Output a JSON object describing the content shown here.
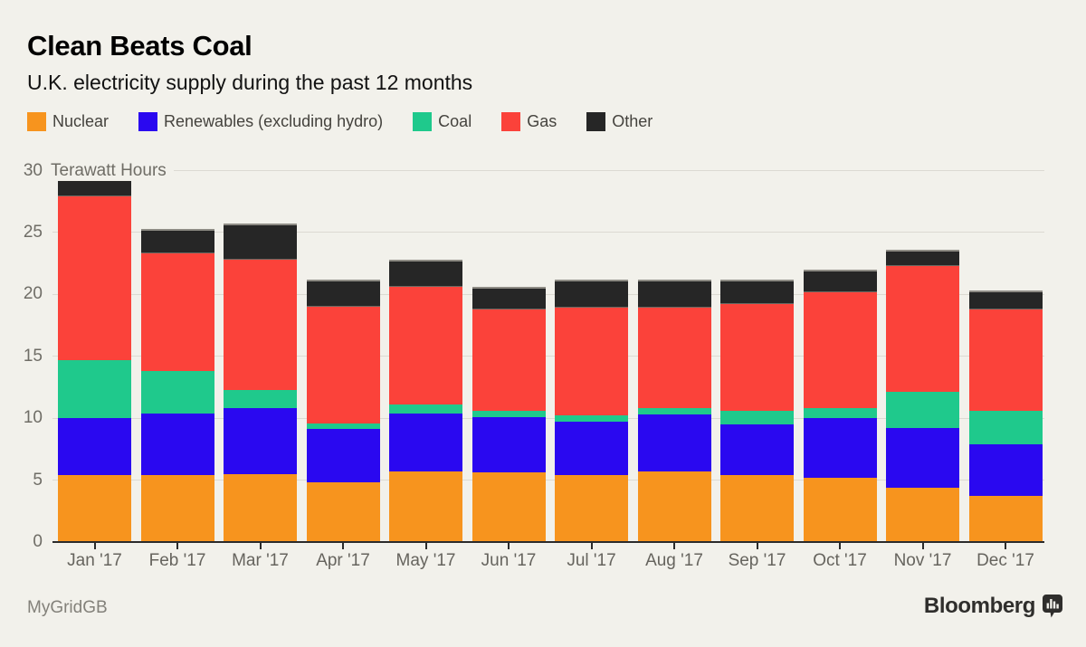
{
  "header": {
    "title": "Clean Beats Coal",
    "subtitle": "U.K. electricity supply during the past 12 months"
  },
  "footer": {
    "source": "MyGridGB",
    "brand": "Bloomberg"
  },
  "colors": {
    "background": "#F2F1EB",
    "gridline": "#DCDAD2",
    "axis": "#2B2B2B",
    "tick_label": "#6F6D66",
    "bar_cap": "#8E8C85"
  },
  "chart_data": {
    "type": "bar",
    "stacked": true,
    "title": "Clean Beats Coal",
    "subtitle": "U.K. electricity supply during the past 12 months",
    "ylabel": "Terawatt Hours",
    "ylim": [
      0,
      30
    ],
    "yticks": [
      0,
      5,
      10,
      15,
      20,
      25,
      30
    ],
    "grid": true,
    "legend_position": "top",
    "categories": [
      "Jan '17",
      "Feb '17",
      "Mar '17",
      "Apr '17",
      "May '17",
      "Jun '17",
      "Jul '17",
      "Aug '17",
      "Sep '17",
      "Oct '17",
      "Nov '17",
      "Dec '17"
    ],
    "series": [
      {
        "name": "Nuclear",
        "color": "#F7941E",
        "values": [
          5.4,
          5.4,
          5.5,
          4.8,
          5.7,
          5.6,
          5.4,
          5.7,
          5.4,
          5.2,
          4.4,
          3.7
        ]
      },
      {
        "name": "Renewables (excluding hydro)",
        "color": "#2A08F0",
        "values": [
          4.6,
          5.0,
          5.3,
          4.3,
          4.7,
          4.5,
          4.3,
          4.6,
          4.1,
          4.8,
          4.8,
          4.2
        ]
      },
      {
        "name": "Coal",
        "color": "#1FC98C",
        "values": [
          4.7,
          3.4,
          1.5,
          0.5,
          0.7,
          0.5,
          0.5,
          0.5,
          1.1,
          0.8,
          2.9,
          2.7
        ]
      },
      {
        "name": "Gas",
        "color": "#FB423A",
        "values": [
          13.2,
          9.5,
          10.5,
          9.4,
          9.5,
          8.2,
          8.7,
          8.1,
          8.6,
          9.4,
          10.2,
          8.2
        ]
      },
      {
        "name": "Other",
        "color": "#262626",
        "values": [
          1.6,
          2.0,
          2.9,
          2.2,
          2.2,
          1.8,
          2.3,
          2.3,
          2.0,
          1.8,
          1.3,
          1.5
        ]
      }
    ]
  }
}
